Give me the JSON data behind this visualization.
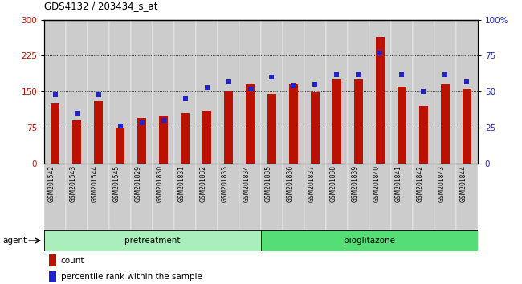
{
  "title": "GDS4132 / 203434_s_at",
  "samples": [
    "GSM201542",
    "GSM201543",
    "GSM201544",
    "GSM201545",
    "GSM201829",
    "GSM201830",
    "GSM201831",
    "GSM201832",
    "GSM201833",
    "GSM201834",
    "GSM201835",
    "GSM201836",
    "GSM201837",
    "GSM201838",
    "GSM201839",
    "GSM201840",
    "GSM201841",
    "GSM201842",
    "GSM201843",
    "GSM201844"
  ],
  "counts": [
    125,
    90,
    130,
    75,
    95,
    100,
    105,
    110,
    150,
    165,
    145,
    165,
    148,
    175,
    175,
    265,
    160,
    120,
    165,
    155
  ],
  "percentiles": [
    48,
    35,
    48,
    26,
    28,
    30,
    45,
    53,
    57,
    52,
    60,
    54,
    55,
    62,
    62,
    77,
    62,
    50,
    62,
    57
  ],
  "group_labels": [
    "pretreatment",
    "pioglitazone"
  ],
  "group_n": [
    10,
    10
  ],
  "bar_color": "#bb1100",
  "dot_color": "#2222cc",
  "ylim_left": [
    0,
    300
  ],
  "ylim_right": [
    0,
    100
  ],
  "yticks_left": [
    0,
    75,
    150,
    225,
    300
  ],
  "yticks_right": [
    0,
    25,
    50,
    75,
    100
  ],
  "grid_values": [
    75,
    150,
    225
  ],
  "legend_count": "count",
  "legend_pct": "percentile rank within the sample",
  "agent_label": "agent",
  "col_bg": "#cccccc",
  "plot_bg": "#ffffff",
  "fig_bg": "#ffffff",
  "agent_color1": "#aaeebb",
  "agent_color2": "#55dd77"
}
